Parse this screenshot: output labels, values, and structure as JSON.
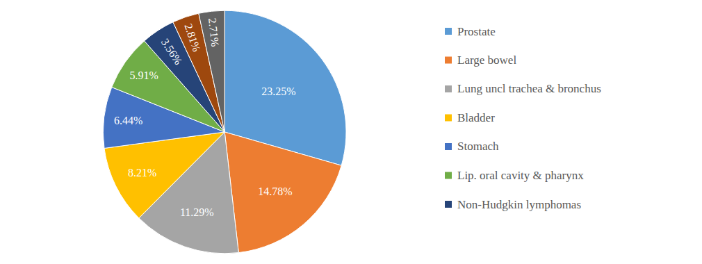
{
  "chart_data": {
    "type": "pie",
    "categories": [
      "Prostate",
      "Large bowel",
      "Lung uncl trachea & bronchus",
      "Bladder",
      "Stomach",
      "Lip. oral cavity & pharynx",
      "Non-Hudgkin lymphomas",
      null,
      null
    ],
    "values": [
      23.25,
      14.78,
      11.29,
      8.21,
      6.44,
      5.91,
      3.56,
      2.81,
      2.71
    ],
    "value_labels": [
      "23.25%",
      "14.78%",
      "11.29%",
      "8.21%",
      "6.44%",
      "5.91%",
      "3.56%",
      "2.81%",
      "2.71%"
    ],
    "colors": [
      "#5b9bd5",
      "#ed7d31",
      "#a5a5a5",
      "#ffc000",
      "#4472c4",
      "#70ad47",
      "#264478",
      "#9e480e",
      "#636363"
    ],
    "data_labels": true,
    "legend": "right"
  }
}
